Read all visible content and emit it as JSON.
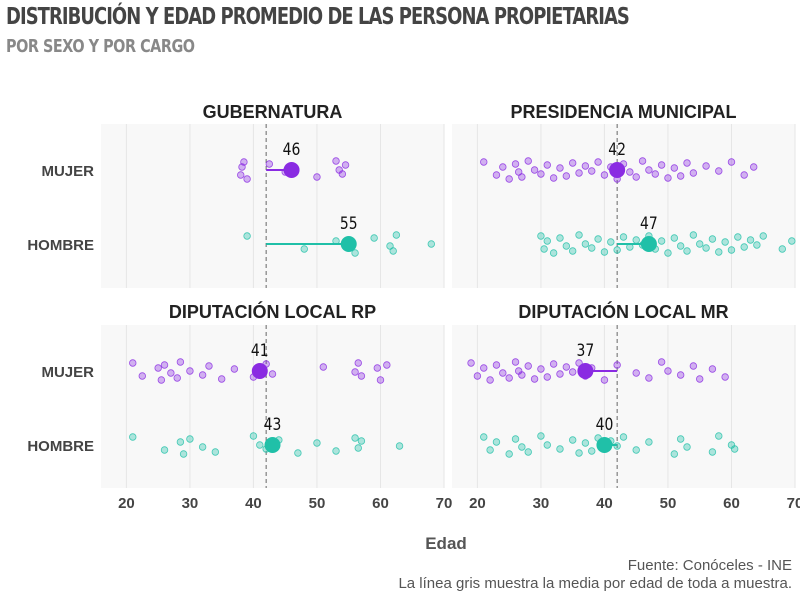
{
  "title": "DISTRIBUCIÓN Y EDAD PROMEDIO DE LAS PERSONA PROPIETARIAS",
  "subtitle": "POR SEXO Y POR CARGO",
  "caption_source": "Fuente: Conóceles - INE",
  "caption_note": "La línea gris muestra la media por edad de toda a muestra.",
  "colors": {
    "mujer": "#8a2be2",
    "hombre": "#20c0a8",
    "mean_line": "#666666",
    "panel_bg": "#f8f8f8"
  },
  "chart_data": {
    "type": "scatter",
    "xlabel": "Edad",
    "xlim": [
      16,
      70
    ],
    "xticks": [
      20,
      30,
      40,
      50,
      60,
      70
    ],
    "categories": [
      "MUJER",
      "HOMBRE"
    ],
    "overall_mean_age": 42,
    "panels": [
      {
        "title": "GUBERNATURA",
        "groups": [
          {
            "name": "MUJER",
            "mean": 46,
            "points": [
              38.5,
              38,
              38.2,
              39,
              42.5,
              45,
              50,
              53,
              53.5,
              54,
              54.5
            ]
          },
          {
            "name": "HOMBRE",
            "mean": 55,
            "points": [
              39,
              48,
              53,
              56,
              59,
              61.5,
              62,
              62.5,
              68
            ]
          }
        ]
      },
      {
        "title": "PRESIDENCIA MUNICIPAL",
        "groups": [
          {
            "name": "MUJER",
            "mean": 42,
            "points": [
              21,
              23,
              24,
              25,
              26,
              26.5,
              27,
              28,
              29,
              30,
              31,
              32,
              33,
              34,
              35,
              36,
              37,
              38,
              39,
              40,
              41,
              42,
              43,
              44,
              45,
              46,
              47,
              48,
              49,
              50,
              51,
              52,
              53,
              54,
              56,
              58,
              60,
              62,
              63.5
            ]
          },
          {
            "name": "HOMBRE",
            "mean": 47,
            "points": [
              30,
              30.5,
              31,
              32,
              33,
              34,
              35,
              36,
              37,
              38,
              39,
              40,
              41,
              42,
              43,
              44,
              45,
              46,
              47,
              48,
              49,
              50,
              51,
              52,
              53,
              54,
              55,
              56,
              57,
              58,
              59,
              60,
              61,
              62,
              63,
              64,
              65,
              68,
              69.5
            ]
          }
        ]
      },
      {
        "title": "DIPUTACIÓN LOCAL RP",
        "groups": [
          {
            "name": "MUJER",
            "mean": 41,
            "points": [
              21,
              22.5,
              25,
              25.5,
              26,
              27,
              28,
              28.5,
              30,
              32,
              33,
              35,
              37,
              40,
              42,
              43,
              51,
              56,
              56.5,
              57,
              59.5,
              60,
              61
            ]
          },
          {
            "name": "HOMBRE",
            "mean": 43,
            "points": [
              21,
              26,
              28.5,
              29,
              30,
              32,
              34,
              40,
              41,
              42,
              44,
              47,
              50,
              53,
              56,
              56.5,
              57,
              63
            ]
          }
        ]
      },
      {
        "title": "DIPUTACIÓN LOCAL MR",
        "groups": [
          {
            "name": "MUJER",
            "mean": 37,
            "points": [
              19,
              20,
              21,
              22,
              23,
              24,
              25,
              26,
              26.5,
              27,
              28,
              29,
              30,
              31,
              32,
              33,
              34,
              35,
              36,
              37,
              38,
              40,
              42,
              45,
              47,
              49,
              50,
              52,
              54,
              55,
              57,
              59
            ]
          },
          {
            "name": "HOMBRE",
            "mean": 40,
            "points": [
              21,
              22,
              23,
              25,
              26,
              27,
              28,
              30,
              31,
              33,
              35,
              36,
              37,
              38,
              39,
              40,
              41,
              42,
              43,
              45,
              47,
              51,
              52,
              53,
              57,
              58,
              60,
              60.5
            ]
          }
        ]
      }
    ]
  }
}
